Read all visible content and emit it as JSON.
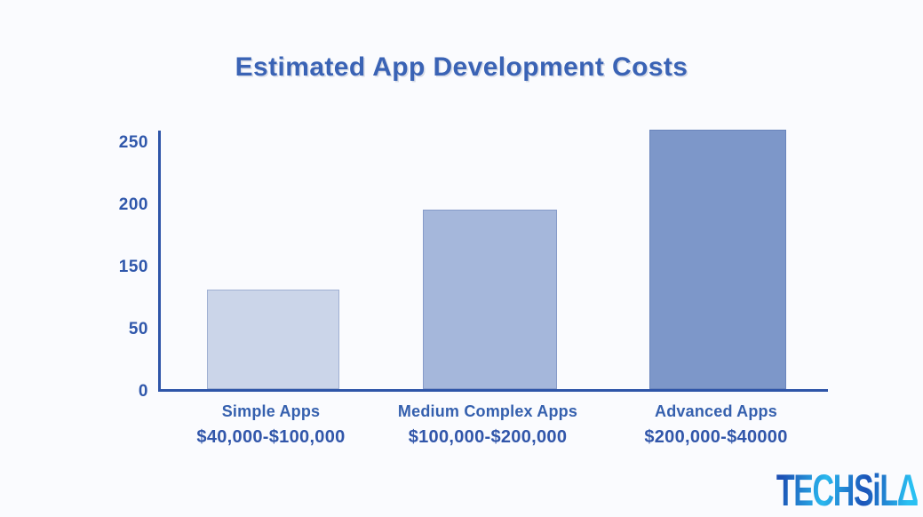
{
  "chart_data": {
    "type": "bar",
    "title": "Estimated App Development Costs",
    "categories": [
      "Simple Apps",
      "Medium Complex Apps",
      "Advanced Apps"
    ],
    "category_ranges": [
      "$40,000-$100,000",
      "$100,000-$200,000",
      "$200,000-$40000"
    ],
    "values": [
      100,
      180,
      260
    ],
    "y_ticks_bottom_to_top": [
      "0",
      "50",
      "150",
      "200",
      "250"
    ],
    "ylim": [
      0,
      250
    ],
    "xlabel": "",
    "ylabel": "",
    "grid": false,
    "legend": false,
    "bar_colors": [
      "#cbd5e9",
      "#a5b7db",
      "#7d97c9"
    ],
    "axis_color": "#2e55a8"
  },
  "branding": {
    "logo_text": "TECHSiLΔ"
  },
  "colors": {
    "background": "#fafbfe",
    "title_text": "#3a63b5",
    "label_text": "#3156aa"
  }
}
